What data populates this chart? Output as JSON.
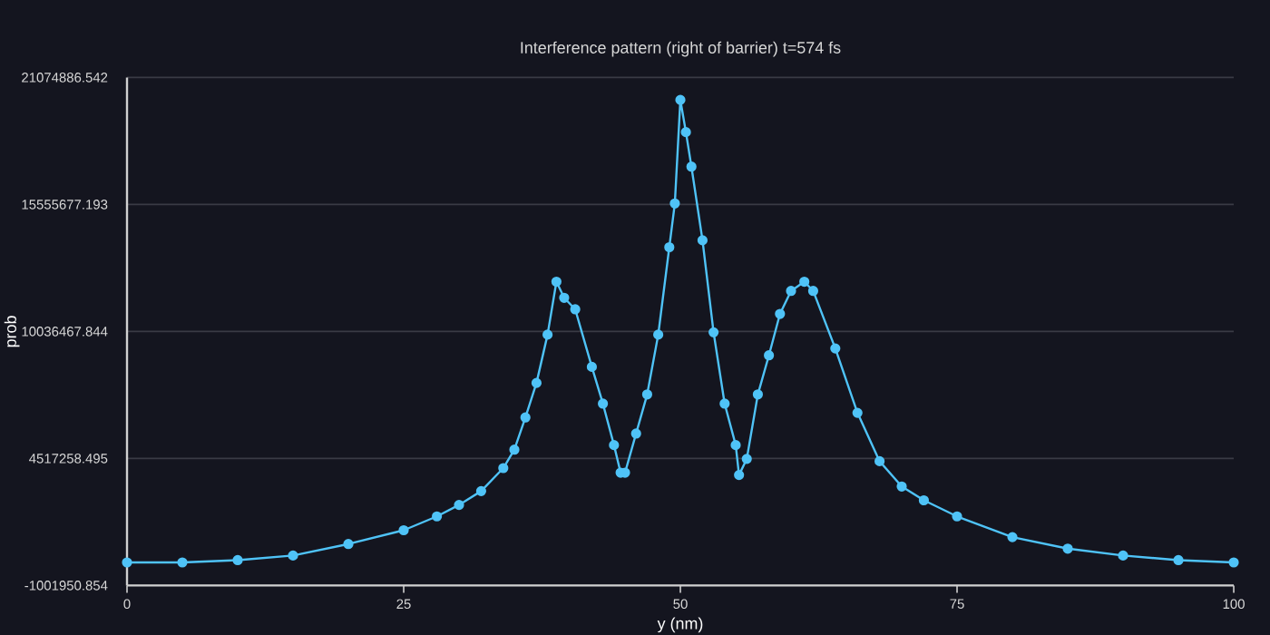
{
  "chart_data": {
    "type": "line",
    "title": "Interference pattern (right of barrier) t=574 fs",
    "xlabel": "y (nm)",
    "ylabel": "prob",
    "x": [
      0,
      5,
      10,
      15,
      20,
      25,
      28,
      30,
      32,
      34,
      35,
      36,
      37,
      38,
      38.8,
      39.5,
      40.5,
      42,
      43,
      44,
      44.6,
      45,
      46,
      47,
      48,
      49,
      49.5,
      50,
      50.5,
      51,
      52,
      53,
      54,
      55,
      55.3,
      56,
      57,
      58,
      59,
      60,
      61.2,
      62,
      64,
      66,
      68,
      70,
      72,
      75,
      80,
      85,
      90,
      95,
      100
    ],
    "series": [
      {
        "color": "#4fc3f7",
        "values": [
          0,
          0,
          100000,
          300000,
          800000,
          1400000,
          2000000,
          2500000,
          3100000,
          4100000,
          4900000,
          6300000,
          7800000,
          9900000,
          12200000,
          11500000,
          11000000,
          8500000,
          6900000,
          5100000,
          3900000,
          3900000,
          5600000,
          7300000,
          9900000,
          13700000,
          15600000,
          20100000,
          18700000,
          17200000,
          14000000,
          10000000,
          6900000,
          5100000,
          3800000,
          4500000,
          7300000,
          9000000,
          10800000,
          11800000,
          12200000,
          11800000,
          9300000,
          6500000,
          4400000,
          3300000,
          2700000,
          2000000,
          1100000,
          600000,
          300000,
          100000,
          0
        ]
      }
    ],
    "xlim": [
      0,
      100
    ],
    "xticks": [
      0,
      25,
      50,
      75,
      100
    ],
    "ylim": [
      -1001950.854,
      21074886.542
    ],
    "yticks": [
      -1001950.854,
      4517258.495,
      10036467.844,
      15555677.193,
      21074886.542
    ],
    "grid": "y",
    "marker": "circle",
    "line_style": "solid"
  }
}
